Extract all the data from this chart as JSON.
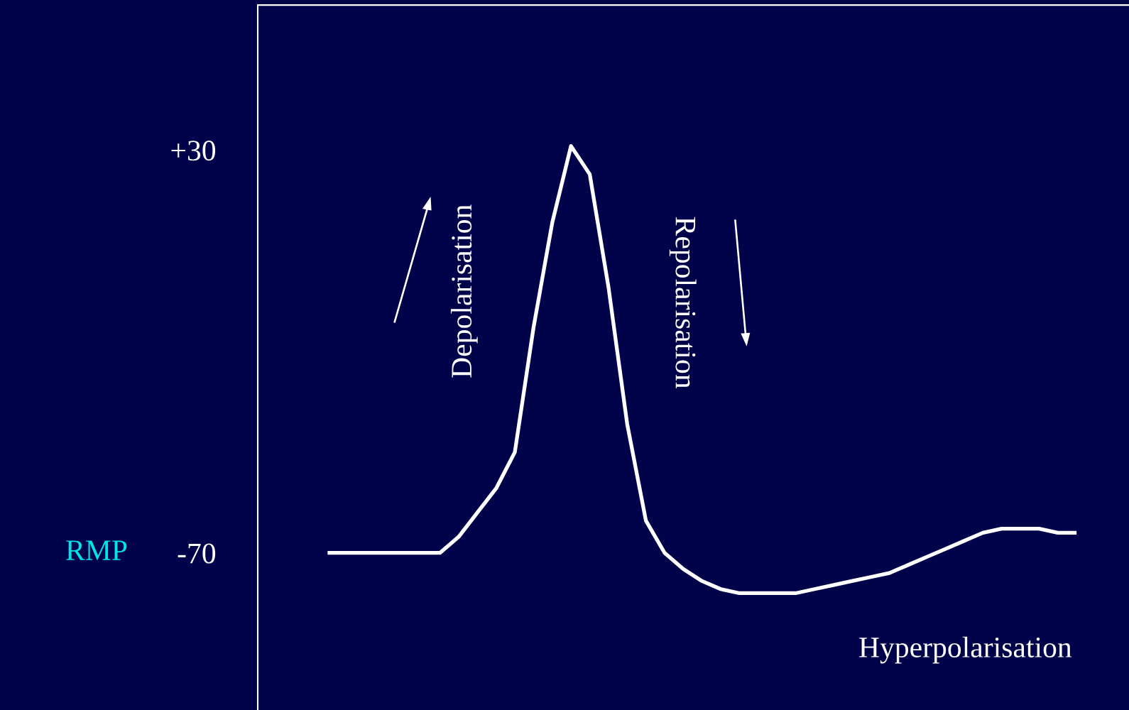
{
  "chart_data": {
    "type": "line",
    "categories": [
      null,
      null,
      null,
      null,
      null,
      null,
      null,
      null,
      null,
      null,
      null,
      null,
      null,
      null,
      null,
      null,
      null,
      null,
      null,
      null,
      null,
      null,
      null,
      null,
      null,
      null,
      null,
      null,
      null,
      null,
      null,
      null,
      null,
      null,
      null,
      null,
      null,
      null,
      null,
      null,
      null
    ],
    "series": [
      {
        "color": "#ffffff",
        "values": [
          -70,
          -70,
          -70,
          -70,
          -70,
          -70,
          -70,
          -66,
          -60,
          -54,
          -45,
          -14,
          12,
          31,
          24,
          -4,
          -38,
          -62,
          -70,
          -74,
          -77,
          -79,
          -80,
          -80,
          -80,
          -80,
          -79,
          -78,
          -77,
          -76,
          -75,
          -73,
          -71,
          -69,
          -67,
          -65,
          -64,
          -64,
          -64,
          -65,
          -65
        ]
      }
    ],
    "ylim": [
      -109,
      66
    ],
    "yticks": [
      {
        "value": 30,
        "label": "+30"
      },
      {
        "value": -70,
        "label": "-70"
      }
    ],
    "tick_labels": "y",
    "grid": false,
    "legend": false,
    "marker": "none",
    "line_style": "solid",
    "annotations": [
      "RMP",
      "Depolarisation",
      "Repolarisation",
      "Hyperpolarisation"
    ]
  }
}
